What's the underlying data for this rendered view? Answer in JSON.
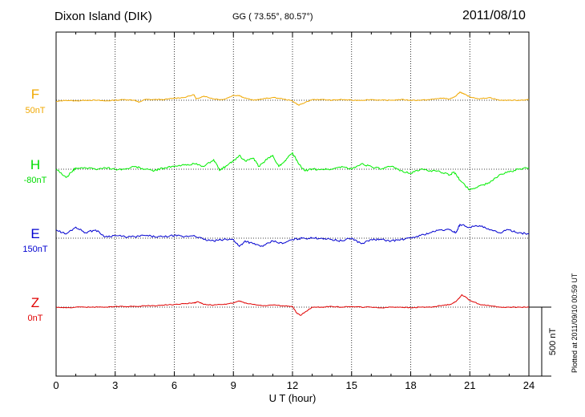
{
  "header": {
    "station": "Dixon Island (DIK)",
    "coords": "GG ( 73.55°,  80.57°)",
    "date": "2011/08/10"
  },
  "side_note": "Plotted at 2011/09/10 00:59 UT",
  "chart_data": {
    "type": "line",
    "title": "",
    "xlabel": "U T (hour)",
    "xlim": [
      0,
      24
    ],
    "xticks": [
      0,
      3,
      6,
      9,
      12,
      15,
      18,
      21,
      24
    ],
    "xtick_labels": [
      "0",
      "3",
      "6",
      "9",
      "12",
      "15",
      "18",
      "21",
      "24"
    ],
    "y_unit": "nT",
    "grid": true,
    "scale_bar": {
      "value": 500,
      "label": "500 nT"
    },
    "series": [
      {
        "name": "F",
        "offset_label": "50nT",
        "color": "#f0a800",
        "x": [
          0,
          0.5,
          1,
          1.5,
          2,
          2.5,
          3,
          3.5,
          4,
          4.2,
          4.5,
          5,
          5.5,
          6,
          6.5,
          7,
          7.1,
          7.5,
          8,
          8.5,
          9,
          9.3,
          9.5,
          10,
          10.5,
          11,
          11.5,
          12,
          12.3,
          12.6,
          13,
          13.5,
          14,
          14.5,
          15,
          15.5,
          16,
          16.5,
          17,
          17.5,
          18,
          18.5,
          19,
          19.5,
          20,
          20.3,
          20.5,
          20.7,
          21,
          21.5,
          22,
          22.5,
          23,
          23.5,
          24
        ],
        "y": [
          -10,
          0,
          -5,
          0,
          0,
          -5,
          0,
          5,
          0,
          -15,
          5,
          5,
          5,
          15,
          20,
          40,
          10,
          30,
          10,
          5,
          35,
          35,
          20,
          0,
          10,
          20,
          10,
          -5,
          -35,
          -20,
          5,
          5,
          0,
          5,
          0,
          0,
          5,
          0,
          0,
          5,
          0,
          0,
          5,
          15,
          10,
          30,
          60,
          45,
          25,
          10,
          20,
          0,
          0,
          0,
          5
        ]
      },
      {
        "name": "H",
        "offset_label": "-80nT",
        "color": "#00ee00",
        "x": [
          0,
          0.5,
          0.8,
          1,
          1.5,
          2,
          2.5,
          3,
          3.5,
          4,
          4.5,
          5,
          5.5,
          6,
          6.5,
          7,
          7.5,
          8,
          8.3,
          8.6,
          9,
          9.3,
          9.6,
          10,
          10.3,
          10.6,
          11,
          11.3,
          11.6,
          12,
          12.3,
          12.6,
          13,
          13.5,
          14,
          14.5,
          15,
          15.5,
          16,
          16.5,
          17,
          17.5,
          18,
          18.5,
          19,
          19.5,
          20,
          20.2,
          20.5,
          21,
          21.5,
          22,
          22.5,
          23,
          23.5,
          24
        ],
        "y": [
          0,
          -60,
          -20,
          10,
          10,
          0,
          10,
          0,
          0,
          20,
          0,
          -10,
          10,
          20,
          30,
          40,
          20,
          70,
          -10,
          20,
          60,
          100,
          60,
          80,
          20,
          60,
          100,
          20,
          60,
          120,
          40,
          -10,
          0,
          0,
          0,
          20,
          0,
          40,
          20,
          0,
          20,
          -10,
          -30,
          0,
          -10,
          -20,
          -40,
          -20,
          -80,
          -150,
          -120,
          -100,
          -40,
          -20,
          0,
          10
        ]
      },
      {
        "name": "E",
        "offset_label": "150nT",
        "color": "#0000d0",
        "x": [
          0,
          0.5,
          1,
          1.5,
          2,
          2.5,
          3,
          3.5,
          4,
          4.5,
          5,
          5.5,
          6,
          6.5,
          7,
          7.5,
          8,
          8.5,
          9,
          9.3,
          9.6,
          10,
          10.5,
          11,
          11.5,
          12,
          12.5,
          13,
          13.5,
          14,
          14.5,
          15,
          15.5,
          16,
          16.5,
          17,
          17.5,
          18,
          18.5,
          19,
          19.5,
          20,
          20.3,
          20.5,
          21,
          21.5,
          22,
          22.5,
          23,
          23.5,
          24
        ],
        "y": [
          60,
          30,
          80,
          40,
          60,
          10,
          20,
          10,
          10,
          20,
          10,
          10,
          20,
          10,
          20,
          -10,
          -20,
          -10,
          -10,
          -60,
          -20,
          -40,
          -60,
          -20,
          -40,
          -10,
          0,
          0,
          0,
          -10,
          -20,
          0,
          -40,
          -10,
          -10,
          -20,
          -10,
          0,
          20,
          40,
          60,
          60,
          40,
          100,
          80,
          90,
          60,
          40,
          60,
          40,
          30
        ]
      },
      {
        "name": "Z",
        "offset_label": "0nT",
        "color": "#e00000",
        "x": [
          0,
          0.5,
          1,
          1.5,
          2,
          2.5,
          3,
          3.5,
          4,
          4.5,
          5,
          5.5,
          6,
          6.5,
          7,
          7.2,
          7.5,
          8,
          8.5,
          9,
          9.3,
          9.6,
          10,
          10.5,
          11,
          11.5,
          12,
          12.2,
          12.4,
          12.7,
          13,
          13.5,
          14,
          14.5,
          15,
          15.5,
          16,
          16.5,
          17,
          17.5,
          18,
          18.5,
          19,
          19.5,
          20,
          20.3,
          20.6,
          21,
          21.5,
          22,
          22.5,
          23,
          23.5,
          24
        ],
        "y": [
          0,
          -5,
          0,
          0,
          0,
          0,
          5,
          5,
          5,
          10,
          10,
          15,
          20,
          25,
          30,
          40,
          20,
          15,
          20,
          30,
          45,
          30,
          20,
          10,
          15,
          10,
          5,
          -40,
          -60,
          -30,
          0,
          0,
          5,
          0,
          5,
          0,
          0,
          -5,
          0,
          0,
          -5,
          0,
          0,
          10,
          20,
          40,
          90,
          50,
          20,
          10,
          0,
          0,
          0,
          0
        ]
      }
    ]
  }
}
